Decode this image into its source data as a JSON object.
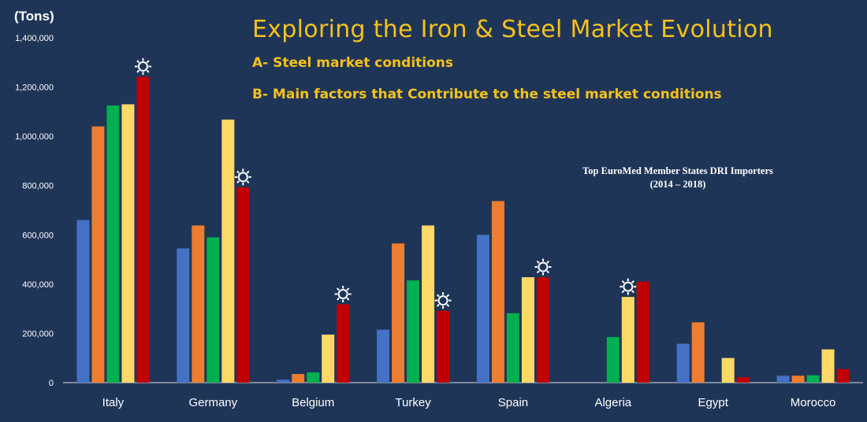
{
  "header": {
    "unit": "(Tons)",
    "title": "Exploring the Iron & Steel Market Evolution",
    "subtitle_a": "A- Steel market conditions",
    "subtitle_b": "B- Main factors that Contribute to the steel market conditions"
  },
  "chart_data": {
    "type": "bar",
    "title_lines": [
      "Top EuroMed Member States DRI Importers",
      "(2014 – 2018)"
    ],
    "ylabel": "(Tons)",
    "ylim": [
      0,
      1400000
    ],
    "yticks": [
      0,
      200000,
      400000,
      600000,
      800000,
      1000000,
      1200000,
      1400000
    ],
    "ytick_labels": [
      "0",
      "200,000",
      "400,000",
      "600,000",
      "800,000",
      "1,000,000",
      "1,200,000",
      "1,400,000"
    ],
    "categories": [
      "Italy",
      "Germany",
      "Belgium",
      "Turkey",
      "Spain",
      "Algeria",
      "Egypt",
      "Morocco"
    ],
    "series": [
      {
        "color": "#4472c4",
        "values": [
          660000,
          545000,
          12000,
          215000,
          600000,
          0,
          158000,
          28000
        ]
      },
      {
        "color": "#ed7d31",
        "values": [
          1040000,
          638000,
          35000,
          565000,
          737000,
          0,
          245000,
          28000
        ]
      },
      {
        "color": "#00b050",
        "values": [
          1125000,
          590000,
          42000,
          415000,
          282000,
          185000,
          0,
          30000
        ]
      },
      {
        "color": "#ffd966",
        "values": [
          1130000,
          1068000,
          195000,
          638000,
          428000,
          348000,
          100000,
          135000
        ]
      },
      {
        "color": "#c00000",
        "values": [
          1242000,
          793000,
          318000,
          292000,
          428000,
          410000,
          22000,
          55000
        ]
      }
    ],
    "highlight_markers": [
      {
        "category": "Italy",
        "series_index": 4
      },
      {
        "category": "Germany",
        "series_index": 4
      },
      {
        "category": "Belgium",
        "series_index": 4
      },
      {
        "category": "Turkey",
        "series_index": 4
      },
      {
        "category": "Spain",
        "series_index": 4
      },
      {
        "category": "Algeria",
        "series_index": 3
      }
    ],
    "marker_icon": "sun-icon",
    "grid": false,
    "legend": "none"
  }
}
